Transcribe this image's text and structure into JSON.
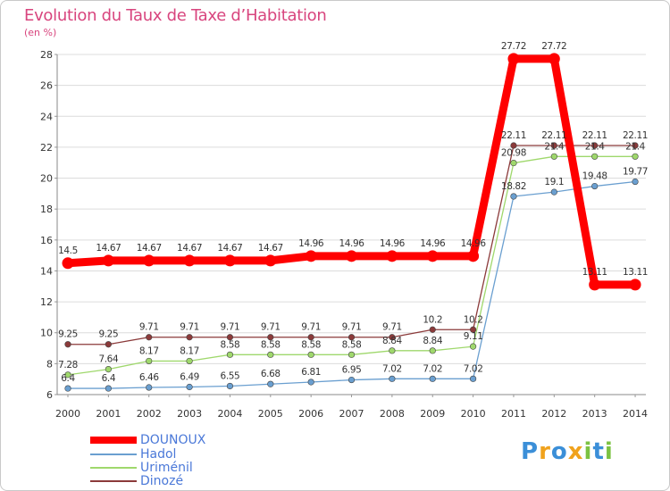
{
  "header": {
    "title": "Evolution du Taux de Taxe d’Habitation",
    "unit": "(en %)"
  },
  "logo": {
    "letters": [
      "P",
      "r",
      "o",
      "x",
      "i",
      "t",
      "i"
    ],
    "colors": [
      "#3b8fd8",
      "#f0a21d",
      "#3b8fd8",
      "#f0a21d",
      "#7cc242",
      "#3b8fd8",
      "#7cc242"
    ]
  },
  "chart_data": {
    "type": "line",
    "title": "Evolution du Taux de Taxe d’Habitation",
    "ylabel": "(en %)",
    "x": [
      "2000",
      "2001",
      "2002",
      "2003",
      "2004",
      "2005",
      "2006",
      "2007",
      "2008",
      "2009",
      "2010",
      "2011",
      "2012",
      "2013",
      "2014"
    ],
    "ylim": [
      6,
      28
    ],
    "yticks": [
      "6",
      "8",
      "10",
      "12",
      "14",
      "16",
      "18",
      "20",
      "22",
      "24",
      "26",
      "28"
    ],
    "grid": "horizontal",
    "legend_position": "bottom-left",
    "series": [
      {
        "name": "DOUNOUX",
        "color": "#ff0000",
        "values": [
          14.5,
          14.67,
          14.67,
          14.67,
          14.67,
          14.67,
          14.96,
          14.96,
          14.96,
          14.96,
          14.96,
          27.72,
          27.72,
          13.11,
          13.11
        ],
        "labels": [
          "14.5",
          "14.67",
          "14.67",
          "14.67",
          "14.67",
          "14.67",
          "14.96",
          "14.96",
          "14.96",
          "14.96",
          "14.96",
          "27.72",
          "27.72",
          "13.11",
          "13.11"
        ]
      },
      {
        "name": "Hadol",
        "color": "#6a9fd0",
        "values": [
          6.4,
          6.4,
          6.46,
          6.49,
          6.55,
          6.68,
          6.81,
          6.95,
          7.02,
          7.02,
          7.02,
          18.82,
          19.1,
          19.48,
          19.77
        ],
        "labels": [
          "6.4",
          "6.4",
          "6.46",
          "6.49",
          "6.55",
          "6.68",
          "6.81",
          "6.95",
          "7.02",
          "7.02",
          "7.02",
          "18.82",
          "19.1",
          "19.48",
          "19.77"
        ]
      },
      {
        "name": "Uriménil",
        "color": "#9fd86c",
        "values": [
          7.28,
          7.64,
          8.17,
          8.17,
          8.58,
          8.58,
          8.58,
          8.58,
          8.84,
          8.84,
          9.11,
          20.98,
          21.4,
          21.4,
          21.4
        ],
        "labels": [
          "7.28",
          "7.64",
          "8.17",
          "8.17",
          "8.58",
          "8.58",
          "8.58",
          "8.58",
          "8.84",
          "8.84",
          "9.11",
          "20.98",
          "21.4",
          "21.4",
          "21.4"
        ]
      },
      {
        "name": "Dinozé",
        "color": "#8b3a3a",
        "values": [
          9.25,
          9.25,
          9.71,
          9.71,
          9.71,
          9.71,
          9.71,
          9.71,
          9.71,
          10.2,
          10.2,
          22.11,
          22.11,
          22.11,
          22.11
        ],
        "labels": [
          "9.25",
          "9.25",
          "9.71",
          "9.71",
          "9.71",
          "9.71",
          "9.71",
          "9.71",
          "9.71",
          "10.2",
          "10.2",
          "22.11",
          "22.11",
          "22.11",
          "22.11"
        ]
      }
    ]
  }
}
